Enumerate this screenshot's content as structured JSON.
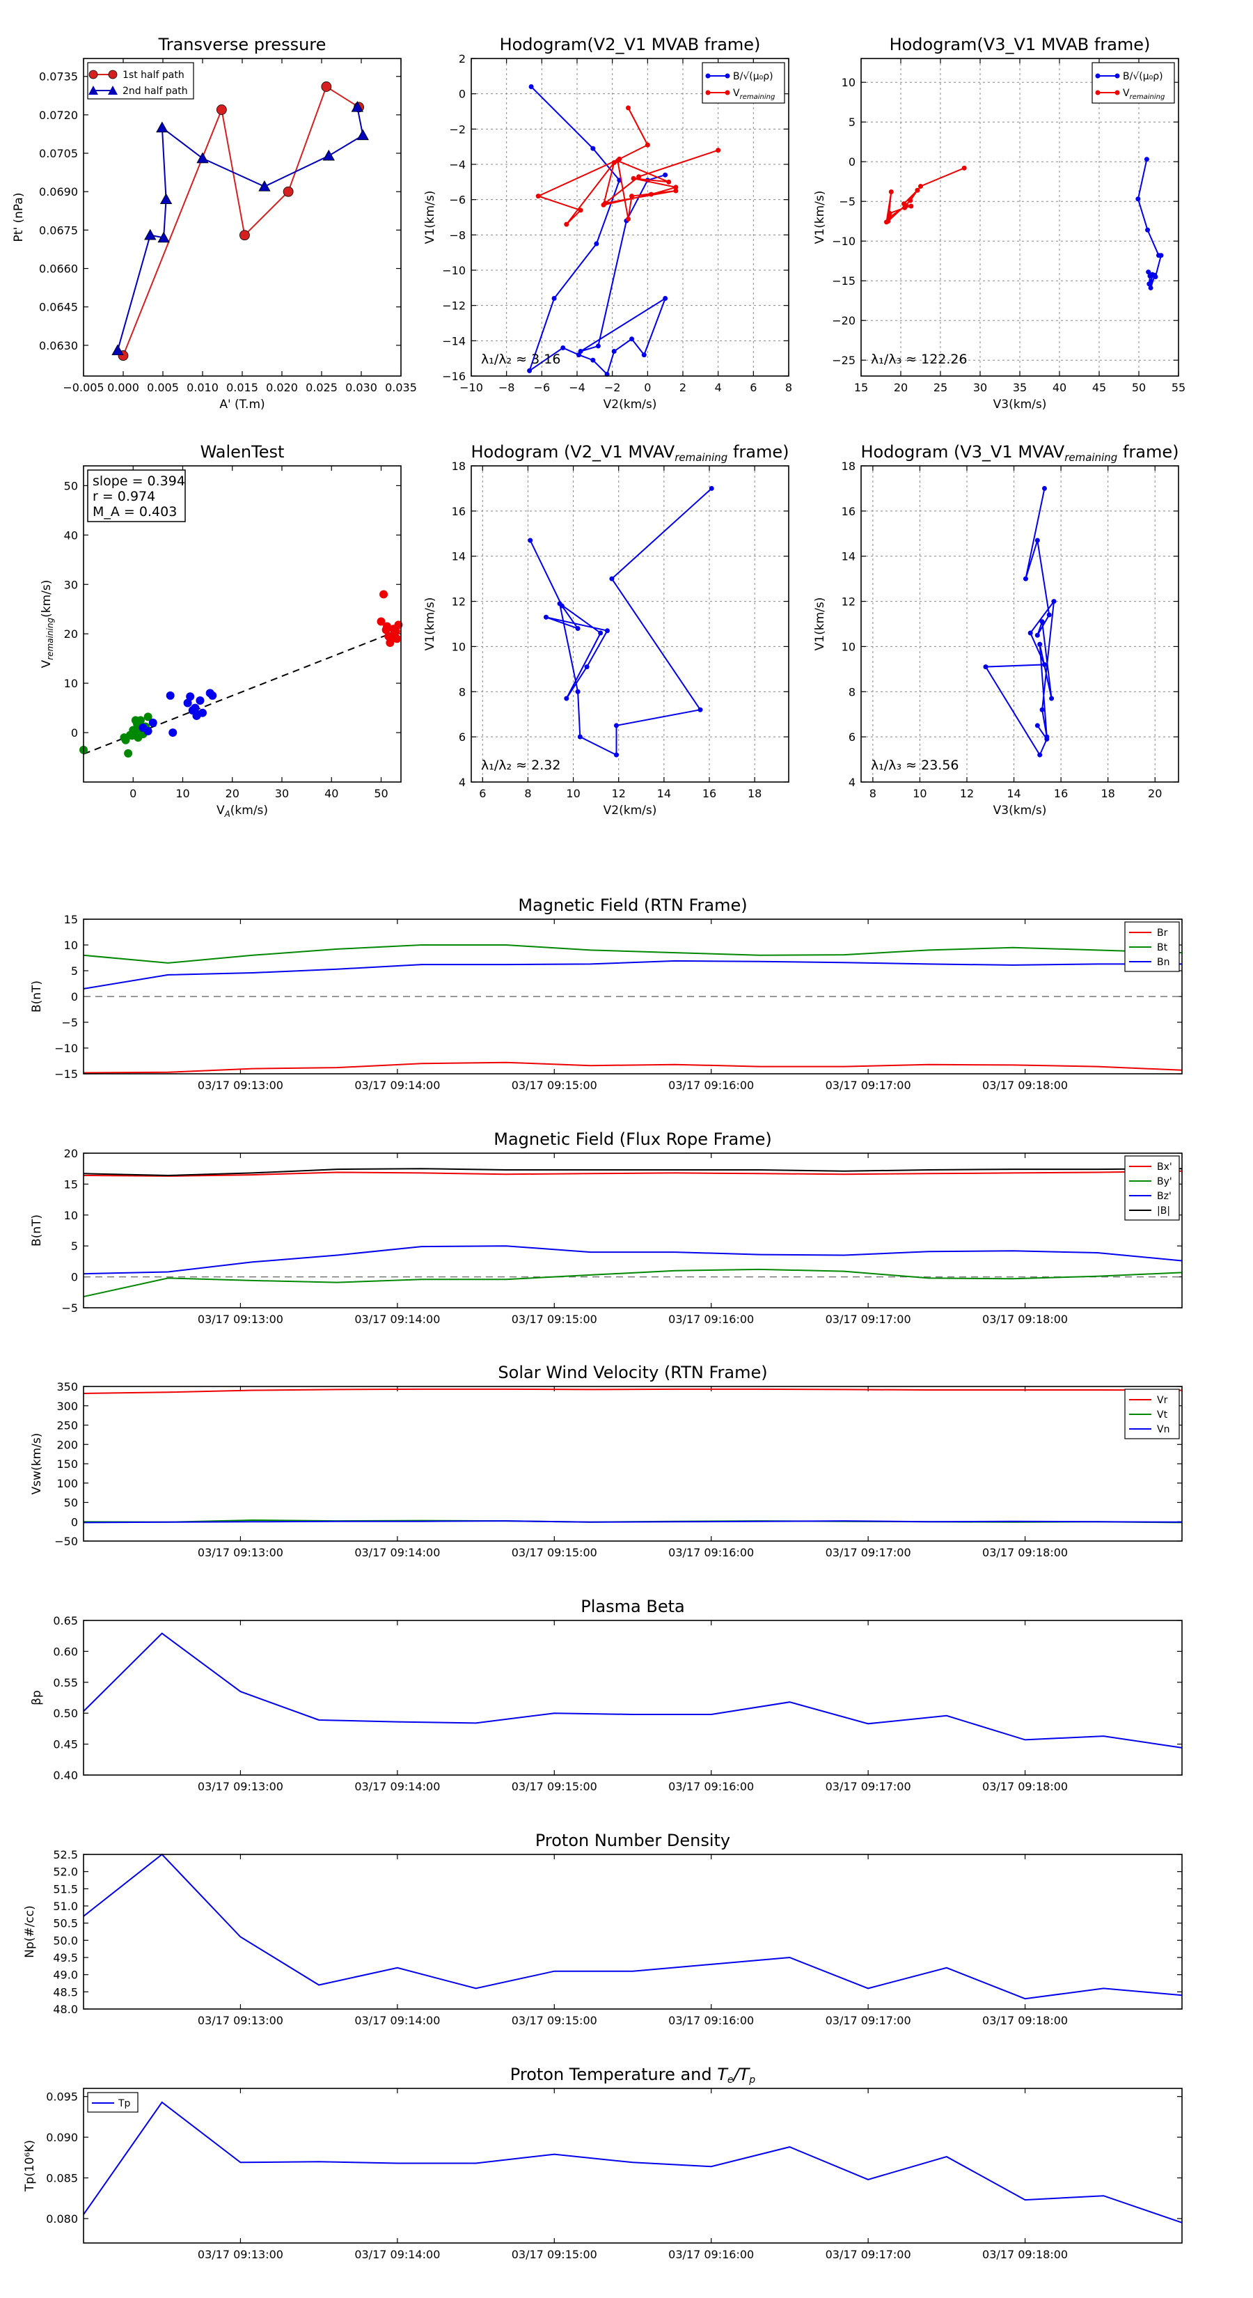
{
  "chart_data": [
    {
      "id": "tp",
      "type": "scatter",
      "title": "Transverse pressure",
      "xlabel": "A' (T.m)",
      "ylabel": "Pt' (nPa)",
      "xlim": [
        -0.005,
        0.035
      ],
      "ylim": [
        0.0618,
        0.0742
      ],
      "xticks": [
        -0.005,
        0.0,
        0.005,
        0.01,
        0.015,
        0.02,
        0.025,
        0.03,
        0.035
      ],
      "xtick_labels": [
        "−0.005",
        "0.000",
        "0.005",
        "0.010",
        "0.015",
        "0.020",
        "0.025",
        "0.030",
        "0.035"
      ],
      "yticks": [
        0.063,
        0.0645,
        0.066,
        0.0675,
        0.069,
        0.0705,
        0.072,
        0.0735
      ],
      "ytick_labels": [
        "0.0630",
        "0.0645",
        "0.0660",
        "0.0675",
        "0.0690",
        "0.0705",
        "0.0720",
        "0.0735"
      ],
      "grid": false,
      "legend": "top-left",
      "series": [
        {
          "name": "1st half path",
          "color": "#d62020",
          "marker": "circle",
          "x": [
            0.0,
            0.0124,
            0.0153,
            0.0208,
            0.0256,
            0.0297
          ],
          "y": [
            0.0626,
            0.0722,
            0.0673,
            0.069,
            0.0731,
            0.0723
          ]
        },
        {
          "name": "2nd half path",
          "color": "#0000bb",
          "marker": "triangle",
          "x": [
            -0.0007,
            0.0034,
            0.0051,
            0.0054,
            0.0049,
            0.01,
            0.0178,
            0.0259,
            0.0302,
            0.0295
          ],
          "y": [
            0.0628,
            0.0673,
            0.0672,
            0.0687,
            0.0715,
            0.0703,
            0.0692,
            0.0704,
            0.0712,
            0.0723
          ]
        }
      ]
    },
    {
      "id": "h1",
      "type": "line",
      "title": "Hodogram(V2_V1 MVAB frame)",
      "xlabel": "V2(km/s)",
      "ylabel": "V1(km/s)",
      "xlim": [
        -10,
        8
      ],
      "ylim": [
        -16,
        2
      ],
      "xticks": [
        -10,
        -8,
        -6,
        -4,
        -2,
        0,
        2,
        4,
        6,
        8
      ],
      "yticks": [
        -16,
        -14,
        -12,
        -10,
        -8,
        -6,
        -4,
        -2,
        0,
        2
      ],
      "grid": true,
      "legend": "top-right",
      "annotation": "λ₁/λ₂ ≈ 3.16",
      "series": [
        {
          "name": "B/√(μ₀ρ)",
          "color": "#0000ee",
          "x": [
            -6.6,
            -3.1,
            -1.6,
            -2.9,
            -5.3,
            -6.7,
            -4.8,
            -3.9,
            -3.1,
            -2.3,
            -1.9,
            -0.9,
            -0.2,
            1.0,
            -3.8,
            -2.8,
            -1.2,
            0.0,
            1.0
          ],
          "y": [
            0.4,
            -3.1,
            -4.9,
            -8.5,
            -11.6,
            -15.7,
            -14.4,
            -14.8,
            -15.1,
            -15.9,
            -14.6,
            -13.9,
            -14.8,
            -11.6,
            -14.6,
            -14.3,
            -7.2,
            -4.9,
            -4.6
          ]
        },
        {
          "name": "V_remaining",
          "color": "#ee0000",
          "x": [
            -1.1,
            0.0,
            -1.6,
            -6.2,
            -3.8,
            -4.6,
            -1.9,
            -2.5,
            0.2,
            1.6,
            -0.8,
            1.2,
            -1.7,
            -1.1,
            -0.9,
            1.6,
            -2.4,
            -0.5,
            4.0
          ],
          "y": [
            -0.8,
            -2.9,
            -3.7,
            -5.8,
            -6.6,
            -7.4,
            -3.9,
            -6.3,
            -5.7,
            -5.3,
            -4.8,
            -5.0,
            -3.8,
            -7.1,
            -5.8,
            -5.5,
            -6.2,
            -4.7,
            -3.2
          ]
        }
      ]
    },
    {
      "id": "h2",
      "type": "line",
      "title": "Hodogram(V3_V1 MVAB frame)",
      "xlabel": "V3(km/s)",
      "ylabel": "V1(km/s)",
      "xlim": [
        15,
        55
      ],
      "ylim": [
        -27,
        13
      ],
      "xticks": [
        15,
        20,
        25,
        30,
        35,
        40,
        45,
        50,
        55
      ],
      "yticks": [
        -25,
        -20,
        -15,
        -10,
        -5,
        0,
        5,
        10
      ],
      "grid": true,
      "legend": "top-right",
      "annotation": "λ₁/λ₃ ≈ 122.26",
      "series": [
        {
          "name": "B/√(μ₀ρ)",
          "color": "#0000ee",
          "x": [
            51.0,
            49.9,
            51.1,
            52.5,
            52.8,
            52.1,
            51.7,
            51.5,
            52.0,
            51.4,
            51.3,
            51.8,
            51.2
          ],
          "y": [
            0.3,
            -4.7,
            -8.6,
            -11.8,
            -11.8,
            -14.5,
            -14.2,
            -15.9,
            -14.3,
            -14.4,
            -15.4,
            -14.3,
            -13.9
          ]
        },
        {
          "name": "V_remaining",
          "color": "#ee0000",
          "x": [
            28.0,
            22.5,
            20.6,
            18.6,
            18.2,
            18.8,
            18.4,
            21.2,
            22.1,
            20.4,
            21.3,
            20.5,
            18.6
          ],
          "y": [
            -0.8,
            -3.1,
            -5.6,
            -7.0,
            -7.6,
            -3.8,
            -7.5,
            -4.9,
            -3.6,
            -5.3,
            -5.6,
            -5.8,
            -6.5
          ]
        }
      ]
    },
    {
      "id": "walen",
      "type": "scatter",
      "title": "WalenTest",
      "xlabel": "V_A(km/s)",
      "ylabel": "V_remaining(km/s)",
      "xlim": [
        -10,
        54
      ],
      "ylim": [
        -10,
        54
      ],
      "xticks": [
        0,
        10,
        20,
        30,
        40,
        50
      ],
      "yticks": [
        0,
        10,
        20,
        30,
        40,
        50
      ],
      "grid": false,
      "stats": [
        "slope = 0.394",
        "r = 0.974",
        "M_A = 0.403"
      ],
      "fit": {
        "slope": 0.394,
        "intercept": -0.4
      },
      "series": [
        {
          "name": "green",
          "color": "#008800",
          "x": [
            -10,
            -1.5,
            -1,
            -0.2,
            0,
            0.5,
            1,
            1.5,
            2,
            2.5,
            3,
            -0.6,
            1.2,
            0.8,
            -1.8,
            0.3
          ],
          "y": [
            -3.5,
            -1.5,
            -4.2,
            -0.6,
            0.5,
            2.5,
            -1,
            2.5,
            -0.3,
            1.2,
            3.2,
            -0.5,
            0.8,
            1.8,
            -1,
            0
          ]
        },
        {
          "name": "blue",
          "color": "#0000ee",
          "x": [
            2,
            3,
            4,
            7.5,
            8,
            11,
            11.5,
            12,
            12.5,
            13,
            13.5,
            15.5,
            16,
            14,
            12.8
          ],
          "y": [
            1,
            0.3,
            2,
            7.5,
            0,
            6,
            7.3,
            4.5,
            5,
            3.7,
            6.5,
            8,
            7.5,
            4,
            3.4
          ]
        },
        {
          "name": "red",
          "color": "#ee0000",
          "x": [
            50,
            50.5,
            51,
            51.5,
            52,
            52.5,
            53,
            53.5,
            51.8,
            52.6,
            52.3,
            51.2,
            53.2
          ],
          "y": [
            22.5,
            28,
            20.8,
            19.5,
            18.8,
            21,
            20.5,
            21.8,
            18.2,
            20,
            19.3,
            21.5,
            19
          ]
        }
      ]
    },
    {
      "id": "h3",
      "type": "line",
      "title": "Hodogram (V2_V1 MVAV_remaining frame)",
      "xlabel": "V2(km/s)",
      "ylabel": "V1(km/s)",
      "xlim": [
        5.5,
        19.5
      ],
      "ylim": [
        4,
        18
      ],
      "xticks": [
        6,
        8,
        10,
        12,
        14,
        16,
        18
      ],
      "yticks": [
        4,
        6,
        8,
        10,
        12,
        14,
        16,
        18
      ],
      "grid": true,
      "annotation": "λ₁/λ₂ ≈ 2.32",
      "series": [
        {
          "name": "V",
          "color": "#0000ee",
          "x": [
            16.1,
            11.7,
            15.6,
            11.9,
            11.9,
            10.3,
            10.2,
            9.4,
            11.2,
            9.7,
            10.6,
            11.5,
            8.8,
            10.2,
            9.5,
            8.1
          ],
          "y": [
            17.0,
            13.0,
            7.2,
            6.5,
            5.2,
            6.0,
            8.0,
            11.9,
            10.6,
            7.7,
            9.1,
            10.7,
            11.3,
            10.8,
            11.8,
            14.7
          ]
        }
      ]
    },
    {
      "id": "h4",
      "type": "line",
      "title": "Hodogram (V3_V1 MVAV_remaining frame)",
      "xlabel": "V3(km/s)",
      "ylabel": "V1(km/s)",
      "xlim": [
        7.5,
        21
      ],
      "ylim": [
        4,
        18
      ],
      "xticks": [
        8,
        10,
        12,
        14,
        16,
        18,
        20
      ],
      "yticks": [
        4,
        6,
        8,
        10,
        12,
        14,
        16,
        18
      ],
      "grid": true,
      "annotation": "λ₁/λ₃ ≈ 23.56",
      "series": [
        {
          "name": "V",
          "color": "#0000ee",
          "x": [
            15.3,
            14.5,
            15.0,
            15.5,
            15.0,
            15.2,
            15.6,
            15.1,
            15.4,
            15.2,
            15.7,
            14.7,
            15.3,
            12.8,
            15.1,
            15.4,
            15.0
          ],
          "y": [
            17.0,
            13.0,
            14.7,
            11.4,
            10.5,
            11.1,
            7.7,
            10.1,
            6.0,
            7.2,
            12.0,
            10.6,
            9.2,
            9.1,
            5.2,
            5.9,
            6.5
          ]
        }
      ]
    },
    {
      "id": "mag_rtn",
      "type": "line",
      "title": "Magnetic Field (RTN Frame)",
      "ylabel": "B(nT)",
      "ylim": [
        -15,
        15
      ],
      "yticks": [
        -15,
        -10,
        -5,
        0,
        5,
        10,
        15
      ],
      "time_start": "03/17 09:12:00",
      "time_end": "03/17 09:19:00",
      "xtick_labels": [
        "03/17 09:13:00",
        "03/17 09:14:00",
        "03/17 09:15:00",
        "03/17 09:16:00",
        "03/17 09:17:00",
        "03/17 09:18:00"
      ],
      "zero_line": true,
      "legend": "top-right",
      "series": [
        {
          "name": "Br",
          "color": "#ee0000",
          "values": [
            -14.8,
            -14.7,
            -14.0,
            -13.8,
            -13.0,
            -12.8,
            -13.4,
            -13.2,
            -13.6,
            -13.6,
            -13.2,
            -13.3,
            -13.6,
            -14.3
          ]
        },
        {
          "name": "Bt",
          "color": "#008800",
          "values": [
            8.0,
            6.5,
            8.0,
            9.2,
            10.0,
            10.0,
            9.0,
            8.5,
            8.0,
            8.1,
            9.0,
            9.5,
            9.0,
            8.5
          ]
        },
        {
          "name": "Bn",
          "color": "#0000ee",
          "values": [
            1.5,
            4.2,
            4.6,
            5.3,
            6.2,
            6.2,
            6.3,
            6.9,
            6.8,
            6.6,
            6.3,
            6.1,
            6.3,
            6.3
          ]
        }
      ]
    },
    {
      "id": "mag_fr",
      "type": "line",
      "title": "Magnetic Field (Flux Rope Frame)",
      "ylabel": "B(nT)",
      "ylim": [
        -5,
        20
      ],
      "yticks": [
        -5,
        0,
        5,
        10,
        15,
        20
      ],
      "time_start": "03/17 09:12:00",
      "time_end": "03/17 09:19:00",
      "xtick_labels": [
        "03/17 09:13:00",
        "03/17 09:14:00",
        "03/17 09:15:00",
        "03/17 09:16:00",
        "03/17 09:17:00",
        "03/17 09:18:00"
      ],
      "zero_line": true,
      "legend": "top-right",
      "series": [
        {
          "name": "Bx'",
          "color": "#ee0000",
          "values": [
            16.4,
            16.3,
            16.5,
            16.9,
            16.8,
            16.6,
            16.7,
            16.8,
            16.7,
            16.6,
            16.7,
            16.8,
            16.9,
            17.1
          ]
        },
        {
          "name": "By'",
          "color": "#008800",
          "values": [
            -3.2,
            -0.2,
            -0.6,
            -0.9,
            -0.4,
            -0.4,
            0.3,
            1.0,
            1.2,
            0.9,
            -0.2,
            -0.3,
            0.1,
            0.7
          ]
        },
        {
          "name": "Bz'",
          "color": "#0000ee",
          "values": [
            0.5,
            0.8,
            2.4,
            3.5,
            4.9,
            5.0,
            4.0,
            4.0,
            3.6,
            3.5,
            4.1,
            4.2,
            3.9,
            2.6
          ]
        },
        {
          "name": "|B|",
          "color": "#000000",
          "values": [
            16.7,
            16.4,
            16.8,
            17.4,
            17.5,
            17.3,
            17.3,
            17.3,
            17.3,
            17.1,
            17.3,
            17.4,
            17.4,
            17.5
          ]
        }
      ]
    },
    {
      "id": "vel",
      "type": "line",
      "title": "Solar Wind Velocity (RTN Frame)",
      "ylabel": "Vsw(km/s)",
      "ylim": [
        -50,
        350
      ],
      "yticks": [
        -50,
        0,
        50,
        100,
        150,
        200,
        250,
        300,
        350
      ],
      "time_start": "03/17 09:12:00",
      "time_end": "03/17 09:19:00",
      "xtick_labels": [
        "03/17 09:13:00",
        "03/17 09:14:00",
        "03/17 09:15:00",
        "03/17 09:16:00",
        "03/17 09:17:00",
        "03/17 09:18:00"
      ],
      "legend": "top-right",
      "series": [
        {
          "name": "Vr",
          "color": "#ee0000",
          "values": [
            332,
            335,
            340,
            342,
            343,
            343,
            342,
            343,
            343,
            342,
            341,
            341,
            341,
            340
          ]
        },
        {
          "name": "Vt",
          "color": "#008800",
          "values": [
            0,
            -1,
            4,
            2,
            3,
            2,
            -1,
            1,
            2,
            1,
            0,
            -1,
            0,
            -2
          ]
        },
        {
          "name": "Vn",
          "color": "#0000ee",
          "values": [
            -2,
            -1,
            0,
            1,
            1,
            2,
            -1,
            0,
            1,
            2,
            0,
            1,
            0,
            -1
          ]
        }
      ]
    },
    {
      "id": "beta",
      "type": "line",
      "title": "Plasma Beta",
      "ylabel": "βp",
      "ylim": [
        0.4,
        0.65
      ],
      "yticks": [
        0.4,
        0.45,
        0.5,
        0.55,
        0.6,
        0.65
      ],
      "ytick_labels": [
        "0.40",
        "0.45",
        "0.50",
        "0.55",
        "0.60",
        "0.65"
      ],
      "time_start": "03/17 09:12:00",
      "time_end": "03/17 09:19:00",
      "xtick_labels": [
        "03/17 09:13:00",
        "03/17 09:14:00",
        "03/17 09:15:00",
        "03/17 09:16:00",
        "03/17 09:17:00",
        "03/17 09:18:00"
      ],
      "series": [
        {
          "name": "beta",
          "color": "#0000ee",
          "values": [
            0.503,
            0.629,
            0.535,
            0.489,
            0.486,
            0.484,
            0.5,
            0.498,
            0.498,
            0.518,
            0.483,
            0.496,
            0.457,
            0.463,
            0.444
          ]
        }
      ]
    },
    {
      "id": "np",
      "type": "line",
      "title": "Proton Number Density",
      "ylabel": "Np(#/cc)",
      "ylim": [
        48.0,
        52.5
      ],
      "yticks": [
        48.0,
        48.5,
        49.0,
        49.5,
        50.0,
        50.5,
        51.0,
        51.5,
        52.0,
        52.5
      ],
      "ytick_labels": [
        "48.0",
        "48.5",
        "49.0",
        "49.5",
        "50.0",
        "50.5",
        "51.0",
        "51.5",
        "52.0",
        "52.5"
      ],
      "time_start": "03/17 09:12:00",
      "time_end": "03/17 09:19:00",
      "xtick_labels": [
        "03/17 09:13:00",
        "03/17 09:14:00",
        "03/17 09:15:00",
        "03/17 09:16:00",
        "03/17 09:17:00",
        "03/17 09:18:00"
      ],
      "series": [
        {
          "name": "Np",
          "color": "#0000ee",
          "values": [
            50.7,
            52.5,
            50.1,
            48.7,
            49.2,
            48.6,
            49.1,
            49.1,
            49.3,
            49.5,
            48.6,
            49.2,
            48.3,
            48.6,
            48.4
          ]
        }
      ]
    },
    {
      "id": "tp2",
      "type": "line",
      "title": "Proton Temperature and Te/Tp",
      "ylabel": "Tp(10⁶K)",
      "ylim": [
        0.077,
        0.096
      ],
      "yticks": [
        0.08,
        0.085,
        0.09,
        0.095
      ],
      "ytick_labels": [
        "0.080",
        "0.085",
        "0.090",
        "0.095"
      ],
      "time_start": "03/17 09:12:00",
      "time_end": "03/17 09:19:00",
      "xtick_labels": [
        "03/17 09:13:00",
        "03/17 09:14:00",
        "03/17 09:15:00",
        "03/17 09:16:00",
        "03/17 09:17:00",
        "03/17 09:18:00"
      ],
      "legend": "top-left",
      "series": [
        {
          "name": "Tp",
          "color": "#0000ee",
          "values": [
            0.0805,
            0.0943,
            0.0869,
            0.087,
            0.0868,
            0.0868,
            0.0879,
            0.0869,
            0.0864,
            0.0888,
            0.0848,
            0.0876,
            0.0823,
            0.0828,
            0.0795
          ]
        }
      ]
    }
  ]
}
